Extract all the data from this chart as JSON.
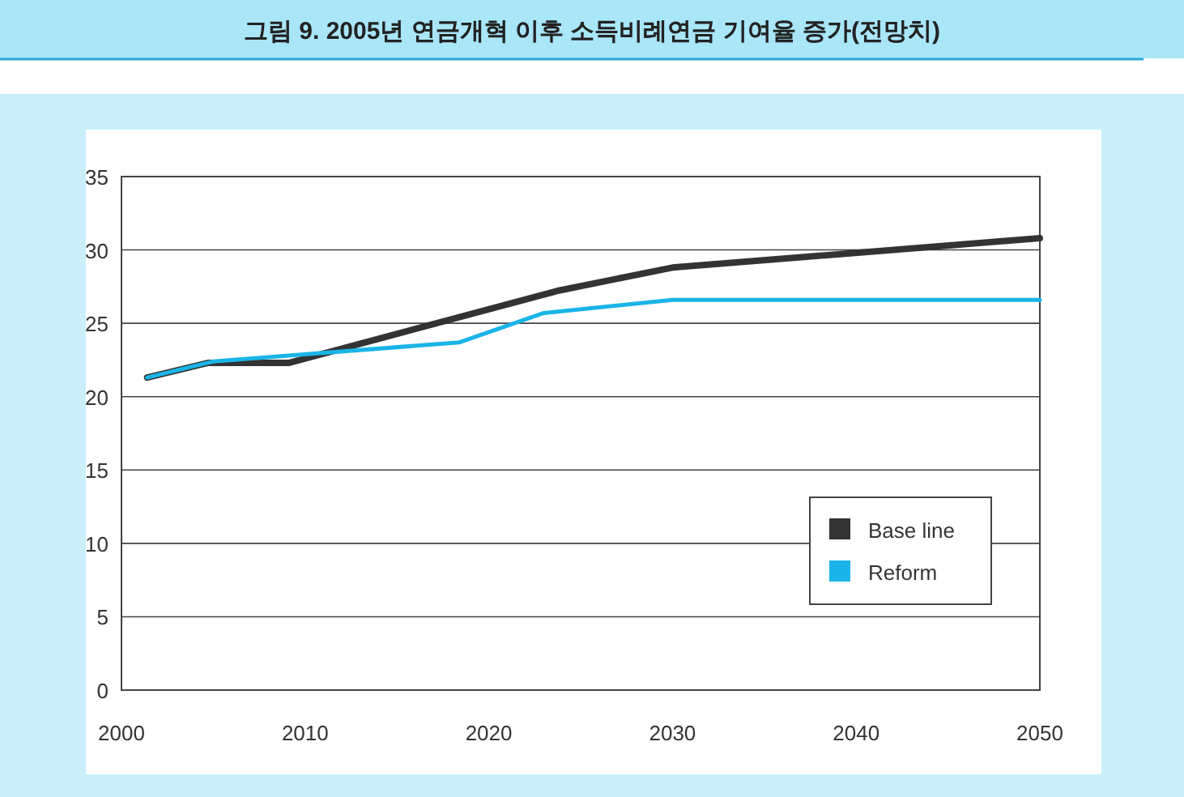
{
  "chart_data": {
    "type": "line",
    "title": "그림 9. 2005년 연금개혁 이후 소득비례연금 기여율 증가(전망치)",
    "series": [
      {
        "name": "Base line",
        "color": "#333333",
        "x": [
          2001.4,
          2004.7,
          2009.1,
          2023.7,
          2030,
          2050
        ],
        "values": [
          21.3,
          22.3,
          22.3,
          27.2,
          28.8,
          30.8
        ]
      },
      {
        "name": "Reform",
        "color": "#1ab4e8",
        "x": [
          2001.4,
          2005,
          2009.1,
          2018.4,
          2023,
          2030,
          2050
        ],
        "values": [
          21.3,
          22.4,
          22.8,
          23.7,
          25.7,
          26.6,
          26.6
        ]
      }
    ],
    "xlim": [
      2000,
      2050
    ],
    "xticks": [
      2000,
      2010,
      2020,
      2030,
      2040,
      2050
    ],
    "ylim": [
      0,
      35
    ],
    "yticks": [
      0,
      5,
      10,
      15,
      20,
      25,
      30,
      35
    ],
    "grid": "y",
    "legend": "bottom right",
    "marker": "none",
    "line_style": "solid"
  }
}
